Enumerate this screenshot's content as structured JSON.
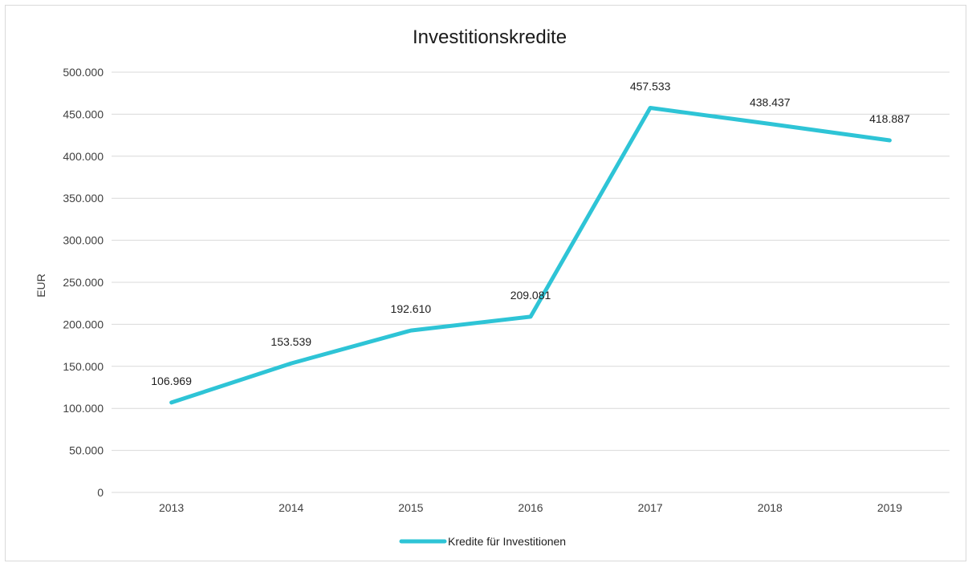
{
  "chart_data": {
    "type": "line",
    "title": "Investitionskredite",
    "xlabel": "",
    "ylabel": "EUR",
    "categories": [
      "2013",
      "2014",
      "2015",
      "2016",
      "2017",
      "2018",
      "2019"
    ],
    "series": [
      {
        "name": "Kredite für Investitionen",
        "values": [
          106969,
          153539,
          192610,
          209081,
          457533,
          438437,
          418887
        ],
        "value_labels": [
          "106.969",
          "153.539",
          "192.610",
          "209.081",
          "457.533",
          "438.437",
          "418.887"
        ],
        "color": "#2ec4d6"
      }
    ],
    "ylim": [
      0,
      500000
    ],
    "y_ticks": [
      0,
      50000,
      100000,
      150000,
      200000,
      250000,
      300000,
      350000,
      400000,
      450000,
      500000
    ],
    "y_tick_labels": [
      "0",
      "50.000",
      "100.000",
      "150.000",
      "200.000",
      "250.000",
      "300.000",
      "350.000",
      "400.000",
      "450.000",
      "500.000"
    ],
    "grid": true,
    "legend_position": "bottom"
  },
  "colors": {
    "line": "#2ec4d6",
    "grid": "#d9d9d9"
  }
}
